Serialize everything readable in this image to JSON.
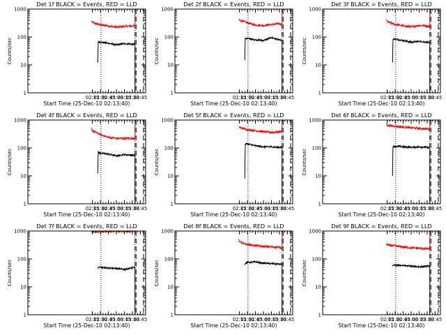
{
  "chart_data": [
    {
      "type": "line",
      "title": "Det 1f BLACK = Events, RED = LLD",
      "xlabel": "Start Time (25-Dec-10 02:13:40)",
      "ylabel": "Counts/sec",
      "yscale": "log",
      "ylim": [
        1,
        1000
      ],
      "x_ticks": [
        "02:15",
        "02:30",
        "02:45",
        "03:00",
        "03:15",
        "03:30",
        "03:45"
      ],
      "y_ticks": [
        "1",
        "10",
        "100",
        "1000"
      ],
      "series": [
        {
          "color": "#ff0000",
          "x": [
            "02:13:40",
            "02:15",
            "02:30",
            "02:45",
            "03:00",
            "03:15",
            "03:30",
            "03:35",
            "03:35:30"
          ],
          "y": [
            360,
            330,
            270,
            250,
            225,
            240,
            250,
            250,
            1000
          ]
        },
        {
          "color": "#000000",
          "x": [
            "02:25",
            "02:25:30",
            "02:26",
            "02:30",
            "02:45",
            "03:00",
            "03:15",
            "03:30",
            "03:35"
          ],
          "y": [
            12,
            40,
            70,
            65,
            60,
            52,
            58,
            55,
            55
          ]
        }
      ],
      "vlines": [
        {
          "x": "02:31",
          "style": "dotted"
        },
        {
          "x": "03:35",
          "style": "dash-dot"
        },
        {
          "x": "03:37",
          "style": "dashed"
        },
        {
          "x": "03:51",
          "style": "dashed"
        }
      ]
    },
    {
      "type": "line",
      "title": "Det 2f BLACK = Events, RED = LLD",
      "xlabel": "Start Time (25-Dec-10 02:13:40)",
      "ylabel": "Counts/sec",
      "yscale": "log",
      "ylim": [
        1,
        1000
      ],
      "x_ticks": [
        "02:15",
        "02:30",
        "02:45",
        "03:00",
        "03:15",
        "03:30",
        "03:45"
      ],
      "y_ticks": [
        "1",
        "10",
        "100",
        "1000"
      ],
      "series": [
        {
          "color": "#ff0000",
          "x": [
            "02:13:40",
            "02:15",
            "02:30",
            "02:45",
            "03:00",
            "03:15",
            "03:30",
            "03:35",
            "03:35:30"
          ],
          "y": [
            450,
            400,
            320,
            270,
            260,
            280,
            300,
            280,
            1000
          ]
        },
        {
          "color": "#000000",
          "x": [
            "02:25",
            "02:25:30",
            "02:26",
            "02:30",
            "02:45",
            "03:00",
            "03:15",
            "03:30",
            "03:35"
          ],
          "y": [
            15,
            50,
            90,
            88,
            80,
            75,
            95,
            78,
            75
          ]
        }
      ],
      "vlines": [
        {
          "x": "02:31",
          "style": "dotted"
        },
        {
          "x": "03:35",
          "style": "dash-dot"
        },
        {
          "x": "03:37",
          "style": "dashed"
        },
        {
          "x": "03:51",
          "style": "dashed"
        }
      ]
    },
    {
      "type": "line",
      "title": "Det 3f BLACK = Events, RED = LLD",
      "xlabel": "Start Time (25-Dec-10 02:13:40)",
      "ylabel": "Counts/sec",
      "yscale": "log",
      "ylim": [
        1,
        1000
      ],
      "x_ticks": [
        "02:15",
        "02:30",
        "02:45",
        "03:00",
        "03:15",
        "03:30",
        "03:45"
      ],
      "y_ticks": [
        "1",
        "10",
        "100",
        "1000"
      ],
      "series": [
        {
          "color": "#ff0000",
          "x": [
            "02:13:40",
            "02:15",
            "02:30",
            "02:45",
            "03:00",
            "03:15",
            "03:30",
            "03:35",
            "03:35:30"
          ],
          "y": [
            400,
            350,
            280,
            250,
            230,
            260,
            250,
            230,
            1000
          ]
        },
        {
          "color": "#000000",
          "x": [
            "02:25",
            "02:25:30",
            "02:26",
            "02:30",
            "02:45",
            "03:00",
            "03:15",
            "03:30",
            "03:35"
          ],
          "y": [
            12,
            45,
            85,
            85,
            75,
            65,
            70,
            65,
            60
          ]
        }
      ],
      "vlines": [
        {
          "x": "02:31",
          "style": "dotted"
        },
        {
          "x": "03:35",
          "style": "dash-dot"
        },
        {
          "x": "03:37",
          "style": "dashed"
        },
        {
          "x": "03:51",
          "style": "dashed"
        }
      ]
    },
    {
      "type": "line",
      "title": "Det 4f BLACK = Events, RED = LLD",
      "xlabel": "Start Time (25-Dec-10 02:13:40)",
      "ylabel": "Counts/sec",
      "yscale": "log",
      "ylim": [
        1,
        1000
      ],
      "x_ticks": [
        "02:15",
        "02:30",
        "02:45",
        "03:00",
        "03:15",
        "03:30",
        "03:45"
      ],
      "y_ticks": [
        "1",
        "10",
        "100",
        "1000"
      ],
      "series": [
        {
          "color": "#ff0000",
          "x": [
            "02:13:40",
            "02:15",
            "02:30",
            "02:45",
            "03:00",
            "03:15",
            "03:30",
            "03:35",
            "03:35:30"
          ],
          "y": [
            500,
            420,
            300,
            240,
            220,
            220,
            220,
            230,
            1000
          ]
        },
        {
          "color": "#000000",
          "x": [
            "02:25",
            "02:25:30",
            "02:26",
            "02:30",
            "02:45",
            "03:00",
            "03:15",
            "03:30",
            "03:35"
          ],
          "y": [
            12,
            40,
            70,
            65,
            60,
            52,
            58,
            55,
            55
          ]
        }
      ],
      "vlines": [
        {
          "x": "02:31",
          "style": "dotted"
        },
        {
          "x": "03:35",
          "style": "dash-dot"
        },
        {
          "x": "03:37",
          "style": "dashed"
        },
        {
          "x": "03:51",
          "style": "dashed"
        }
      ]
    },
    {
      "type": "line",
      "title": "Det 5f BLACK = Events, RED = LLD",
      "xlabel": "Start Time (25-Dec-10 02:13:40)",
      "ylabel": "Counts/sec",
      "yscale": "log",
      "ylim": [
        1,
        1000
      ],
      "x_ticks": [
        "02:15",
        "02:30",
        "02:45",
        "03:00",
        "03:15",
        "03:30",
        "03:45"
      ],
      "y_ticks": [
        "1",
        "10",
        "100",
        "1000"
      ],
      "series": [
        {
          "color": "#ff0000",
          "x": [
            "02:13:40",
            "02:15",
            "02:30",
            "02:45",
            "03:00",
            "03:15",
            "03:30",
            "03:35",
            "03:35:30"
          ],
          "y": [
            620,
            550,
            450,
            420,
            380,
            360,
            380,
            400,
            1000
          ]
        },
        {
          "color": "#000000",
          "x": [
            "02:25",
            "02:25:30",
            "02:26",
            "02:30",
            "02:45",
            "03:00",
            "03:15",
            "03:30",
            "03:35"
          ],
          "y": [
            8,
            70,
            140,
            140,
            120,
            110,
            110,
            105,
            105
          ]
        }
      ],
      "vlines": [
        {
          "x": "02:31",
          "style": "dotted"
        },
        {
          "x": "03:35",
          "style": "dash-dot"
        },
        {
          "x": "03:37",
          "style": "dashed"
        },
        {
          "x": "03:51",
          "style": "dashed"
        }
      ]
    },
    {
      "type": "line",
      "title": "Det 6f BLACK = Events, RED = LLD",
      "xlabel": "Start Time (25-Dec-10 02:13:40)",
      "ylabel": "Counts/sec",
      "yscale": "log",
      "ylim": [
        1,
        1000
      ],
      "x_ticks": [
        "02:15",
        "02:30",
        "02:45",
        "03:00",
        "03:15",
        "03:30",
        "03:45"
      ],
      "y_ticks": [
        "1",
        "10",
        "100",
        "1000"
      ],
      "series": [
        {
          "color": "#ff0000",
          "x": [
            "02:13:40",
            "02:15",
            "02:30",
            "02:45",
            "03:00",
            "03:15",
            "03:30",
            "03:35",
            "03:35:30"
          ],
          "y": [
            700,
            650,
            600,
            560,
            530,
            500,
            480,
            480,
            1000
          ]
        },
        {
          "color": "#000000",
          "x": [
            "02:25",
            "02:25:30",
            "02:26",
            "02:30",
            "02:45",
            "03:00",
            "03:15",
            "03:30",
            "03:35"
          ],
          "y": [
            10,
            60,
            115,
            115,
            110,
            105,
            110,
            105,
            100
          ]
        }
      ],
      "vlines": [
        {
          "x": "02:31",
          "style": "dotted"
        },
        {
          "x": "03:35",
          "style": "dash-dot"
        },
        {
          "x": "03:37",
          "style": "dashed"
        },
        {
          "x": "03:51",
          "style": "dashed"
        }
      ]
    },
    {
      "type": "line",
      "title": "Det 7f BLACK = Events, RED = LLD",
      "xlabel": "Start Time (25-Dec-10 02:13:40)",
      "ylabel": "Counts/sec",
      "yscale": "log",
      "ylim": [
        1,
        1000
      ],
      "x_ticks": [
        "02:15",
        "02:30",
        "02:45",
        "03:00",
        "03:15",
        "03:30",
        "03:45"
      ],
      "y_ticks": [
        "1",
        "10",
        "100",
        "1000"
      ],
      "series": [
        {
          "color": "#ff0000",
          "x": [
            "02:13:40",
            "02:15",
            "02:30",
            "02:45",
            "03:00",
            "03:15",
            "03:30",
            "03:35",
            "03:35:30"
          ],
          "y": [
            900,
            920,
            950,
            980,
            1000,
            1000,
            1000,
            1000,
            1000
          ]
        },
        {
          "color": "#000000",
          "x": [
            "02:25",
            "02:25:30",
            "02:26",
            "02:30",
            "02:45",
            "03:00",
            "03:15",
            "03:30",
            "03:35"
          ],
          "y": [
            45,
            48,
            50,
            50,
            48,
            45,
            42,
            48,
            50
          ]
        }
      ],
      "vlines": [
        {
          "x": "02:31",
          "style": "dotted"
        },
        {
          "x": "03:35",
          "style": "dash-dot"
        },
        {
          "x": "03:37",
          "style": "dashed"
        },
        {
          "x": "03:51",
          "style": "dashed"
        }
      ]
    },
    {
      "type": "line",
      "title": "Det 8f BLACK = Events, RED = LLD",
      "xlabel": "Start Time (25-Dec-10 02:13:40)",
      "ylabel": "Counts/sec",
      "yscale": "log",
      "ylim": [
        1,
        1000
      ],
      "x_ticks": [
        "02:15",
        "02:30",
        "02:45",
        "03:00",
        "03:15",
        "03:30",
        "03:45"
      ],
      "y_ticks": [
        "1",
        "10",
        "100",
        "1000"
      ],
      "series": [
        {
          "color": "#ff0000",
          "x": [
            "02:13:40",
            "02:15",
            "02:30",
            "02:45",
            "03:00",
            "03:15",
            "03:30",
            "03:35",
            "03:35:30"
          ],
          "y": [
            480,
            400,
            330,
            300,
            280,
            270,
            260,
            250,
            1000
          ]
        },
        {
          "color": "#000000",
          "x": [
            "02:25",
            "02:25:30",
            "02:26",
            "02:30",
            "02:45",
            "03:00",
            "03:15",
            "03:30",
            "03:35"
          ],
          "y": [
            60,
            65,
            70,
            75,
            78,
            70,
            68,
            65,
            65
          ]
        }
      ],
      "vlines": [
        {
          "x": "02:31",
          "style": "dotted"
        },
        {
          "x": "03:35",
          "style": "dash-dot"
        },
        {
          "x": "03:37",
          "style": "dashed"
        },
        {
          "x": "03:51",
          "style": "dashed"
        }
      ]
    },
    {
      "type": "line",
      "title": "Det 9f BLACK = Events, RED = LLD",
      "xlabel": "Start Time (25-Dec-10 02:13:40)",
      "ylabel": "Counts/sec",
      "yscale": "log",
      "ylim": [
        1,
        1000
      ],
      "x_ticks": [
        "02:15",
        "02:30",
        "02:45",
        "03:00",
        "03:15",
        "03:30",
        "03:45"
      ],
      "y_ticks": [
        "1",
        "10",
        "100",
        "1000"
      ],
      "series": [
        {
          "color": "#ff0000",
          "x": [
            "02:13:40",
            "02:15",
            "02:30",
            "02:45",
            "03:00",
            "03:15",
            "03:30",
            "03:35",
            "03:35:30"
          ],
          "y": [
            350,
            320,
            290,
            270,
            250,
            240,
            230,
            230,
            1000
          ]
        },
        {
          "color": "#000000",
          "x": [
            "02:25",
            "02:25:30",
            "02:26",
            "02:30",
            "02:45",
            "03:00",
            "03:15",
            "03:30",
            "03:35"
          ],
          "y": [
            55,
            58,
            60,
            60,
            58,
            55,
            52,
            55,
            55
          ]
        }
      ],
      "vlines": [
        {
          "x": "02:31",
          "style": "dotted"
        },
        {
          "x": "03:35",
          "style": "dash-dot"
        },
        {
          "x": "03:37",
          "style": "dashed"
        },
        {
          "x": "03:51",
          "style": "dashed"
        }
      ]
    }
  ]
}
